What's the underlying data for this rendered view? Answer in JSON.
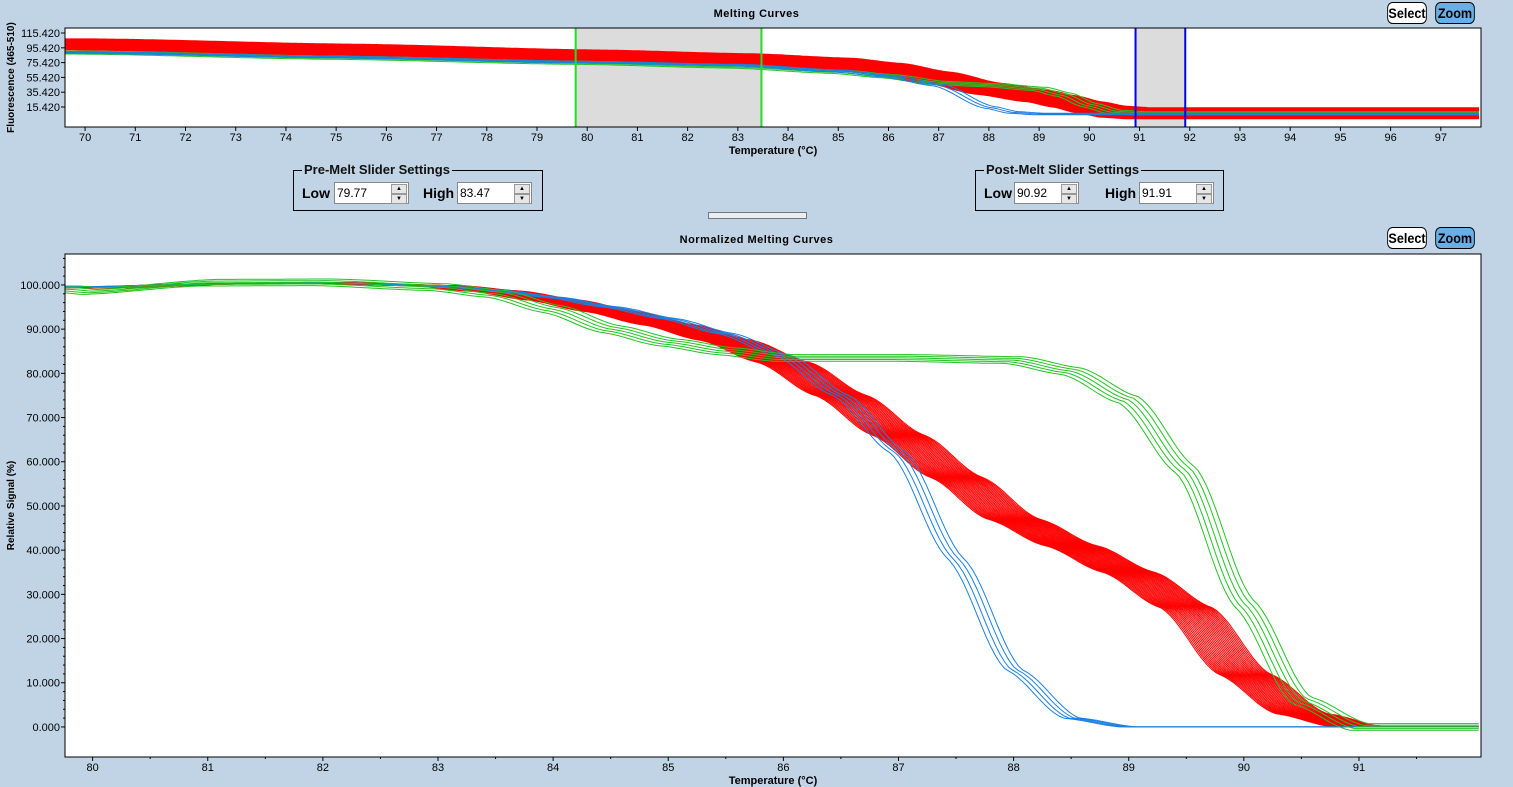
{
  "top_panel": {
    "select_label": "Select",
    "zoom_label": "Zoom"
  },
  "bottom_panel": {
    "select_label": "Select",
    "zoom_label": "Zoom"
  },
  "pre_melt": {
    "legend": "Pre-Melt Slider Settings",
    "low_label": "Low",
    "low_value": "79.77",
    "high_label": "High",
    "high_value": "83.47"
  },
  "post_melt": {
    "legend": "Post-Melt Slider Settings",
    "low_label": "Low",
    "low_value": "90.92",
    "high_label": "High",
    "high_value": "91.91"
  },
  "colors": {
    "red": "#ff0000",
    "green": "#22c322",
    "blue": "#1a7fe0",
    "pre_slider": "#22dd22",
    "post_slider": "#0000ee",
    "slider_fill": "#dcdcdc"
  },
  "chart_data": [
    {
      "type": "line",
      "title": "Melting Curves",
      "xlabel": "Temperature (°C)",
      "ylabel": "Fluorescence (465-510)",
      "xlim": [
        69.6,
        97.8
      ],
      "ylim": [
        -11.6,
        122.2
      ],
      "xticks": [
        70,
        71,
        72,
        73,
        74,
        75,
        76,
        77,
        78,
        79,
        80,
        81,
        82,
        83,
        84,
        85,
        86,
        87,
        88,
        89,
        90,
        91,
        92,
        93,
        94,
        95,
        96,
        97
      ],
      "yticks": [
        "15.420",
        "35.420",
        "55.420",
        "75.420",
        "95.420",
        "115.420"
      ],
      "regions": [
        {
          "name": "pre-melt",
          "low": 79.77,
          "high": 83.47,
          "color": "#22dd22"
        },
        {
          "name": "post-melt",
          "low": 90.92,
          "high": 91.91,
          "color": "#0000ee"
        }
      ],
      "series": [
        {
          "color": "#ff0000",
          "x": [
            70,
            75,
            80,
            83,
            85,
            86,
            87,
            88,
            89,
            89.5,
            90,
            90.5,
            91,
            97.6
          ],
          "y": [
            100,
            93,
            85,
            80,
            74,
            67,
            55,
            40,
            30,
            23,
            15,
            9,
            7,
            7
          ]
        },
        {
          "color": "#22c322",
          "x": [
            70,
            75,
            80,
            83,
            85,
            86,
            87,
            88,
            89,
            89.5,
            90,
            90.5,
            91,
            91.5
          ],
          "y": [
            89,
            82,
            75,
            70,
            63,
            57,
            48,
            45,
            40,
            32,
            18,
            9,
            7,
            7
          ]
        },
        {
          "color": "#1a7fe0",
          "x": [
            70,
            75,
            80,
            83,
            85,
            86,
            87,
            88,
            88.5,
            89,
            90,
            91
          ],
          "y": [
            89,
            83,
            76,
            72,
            64,
            57,
            45,
            15,
            8,
            6,
            6,
            6
          ]
        }
      ]
    },
    {
      "type": "line",
      "title": "Normalized Melting Curves",
      "xlabel": "Temperature (°C)",
      "ylabel": "Relative Signal (%)",
      "xlim": [
        79.76,
        92.06
      ],
      "ylim": [
        -6.8,
        107
      ],
      "xticks": [
        80,
        81,
        82,
        83,
        84,
        85,
        86,
        87,
        88,
        89,
        90,
        91
      ],
      "yticks": [
        "0.000",
        "10.000",
        "20.000",
        "30.000",
        "40.000",
        "50.000",
        "60.000",
        "70.000",
        "80.000",
        "90.000",
        "100.000"
      ],
      "series": [
        {
          "color": "#ff0000",
          "x": [
            79.8,
            80,
            81,
            82,
            83,
            83.5,
            84,
            84.5,
            85,
            85.5,
            86,
            86.5,
            87,
            87.5,
            88,
            88.5,
            89,
            89.5,
            90,
            90.5,
            91,
            92
          ],
          "y": [
            99.5,
            99.3,
            100.2,
            100.5,
            99.8,
            98.6,
            96.6,
            94,
            91,
            87.5,
            82.5,
            75,
            66,
            56.5,
            47,
            41,
            35,
            27,
            12,
            3,
            0,
            0
          ]
        },
        {
          "color": "#1a7fe0",
          "x": [
            79.8,
            81,
            82,
            83,
            83.5,
            84,
            84.5,
            85,
            85.5,
            86,
            86.5,
            87,
            87.5,
            88,
            88.5,
            89,
            90,
            91
          ],
          "y": [
            99.5,
            100.2,
            100.5,
            99.8,
            98.8,
            97.2,
            95,
            92.4,
            89,
            84,
            75,
            62,
            38,
            13,
            2,
            0,
            0,
            0
          ]
        },
        {
          "color": "#22c322",
          "x": [
            79.8,
            80,
            81,
            82,
            83,
            83.5,
            84,
            84.5,
            85,
            85.5,
            86,
            87,
            88,
            88.5,
            89,
            89.5,
            90,
            90.5,
            91,
            91.2
          ],
          "y": [
            99,
            98.6,
            100.5,
            100.6,
            99.5,
            98,
            94.5,
            90,
            87,
            85,
            83.5,
            83.5,
            83,
            80.5,
            74,
            58,
            28,
            6,
            0,
            0
          ]
        }
      ]
    }
  ]
}
